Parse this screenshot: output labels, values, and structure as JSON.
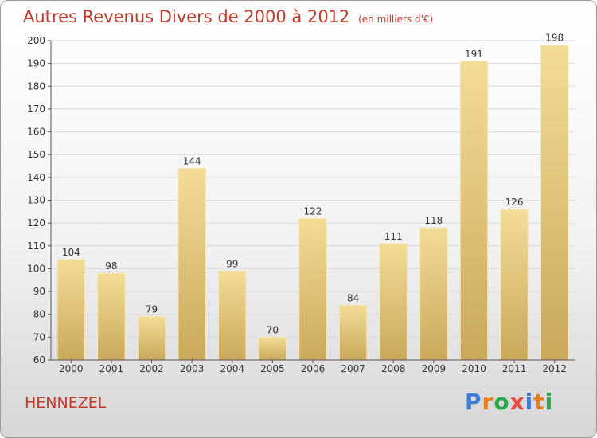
{
  "chart_data": {
    "type": "bar",
    "title": "Autres Revenus Divers de 2000 à 2012",
    "subtitle": "(en milliers d'€)",
    "categories": [
      "2000",
      "2001",
      "2002",
      "2003",
      "2004",
      "2005",
      "2006",
      "2007",
      "2008",
      "2009",
      "2010",
      "2011",
      "2012"
    ],
    "values": [
      104,
      98,
      79,
      144,
      99,
      70,
      122,
      84,
      111,
      118,
      191,
      126,
      198
    ],
    "ylim": [
      60,
      200
    ],
    "yticks": [
      60,
      70,
      80,
      90,
      100,
      110,
      120,
      130,
      140,
      150,
      160,
      170,
      180,
      190,
      200
    ],
    "grid": true,
    "bar_color": "#e8cf83",
    "bar_color_light": "#f3dc96",
    "bar_color_dark": "#c9a95a"
  },
  "commune": "HENNEZEL",
  "logo": {
    "letters": [
      "P",
      "r",
      "o",
      "x",
      "i",
      "t",
      "i"
    ],
    "colors": [
      "#3b7dd8",
      "#e67e22",
      "#2aa84a",
      "#e74c3c",
      "#3b7dd8",
      "#e67e22",
      "#2aa84a"
    ]
  },
  "colors": {
    "accent": "#c0392b"
  }
}
